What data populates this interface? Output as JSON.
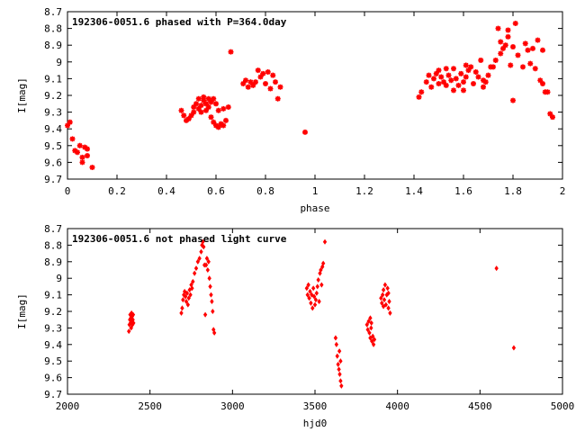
{
  "chart_data": [
    {
      "type": "scatter",
      "title": "192306-0051.6 phased with P=364.0day",
      "xlabel": "phase",
      "ylabel": "I[mag]",
      "xlim": [
        0,
        2
      ],
      "ylim": [
        9.7,
        8.7
      ],
      "y_inverted": true,
      "xticks": [
        "0",
        "0.2",
        "0.4",
        "0.6",
        "0.8",
        "1",
        "1.2",
        "1.4",
        "1.6",
        "1.8",
        "2"
      ],
      "yticks": [
        "8.7",
        "8.8",
        "8.9",
        "9",
        "9.1",
        "9.2",
        "9.3",
        "9.4",
        "9.5",
        "9.6",
        "9.7"
      ],
      "marker_color": "#ff0000",
      "marker": "star",
      "points": [
        [
          0.0,
          9.38
        ],
        [
          0.01,
          9.36
        ],
        [
          0.02,
          9.46
        ],
        [
          0.03,
          9.53
        ],
        [
          0.04,
          9.54
        ],
        [
          0.05,
          9.5
        ],
        [
          0.06,
          9.57
        ],
        [
          0.07,
          9.51
        ],
        [
          0.06,
          9.6
        ],
        [
          0.08,
          9.56
        ],
        [
          0.08,
          9.52
        ],
        [
          0.1,
          9.63
        ],
        [
          0.46,
          9.29
        ],
        [
          0.47,
          9.32
        ],
        [
          0.48,
          9.35
        ],
        [
          0.49,
          9.34
        ],
        [
          0.5,
          9.32
        ],
        [
          0.51,
          9.3
        ],
        [
          0.51,
          9.27
        ],
        [
          0.52,
          9.25
        ],
        [
          0.53,
          9.28
        ],
        [
          0.53,
          9.22
        ],
        [
          0.54,
          9.26
        ],
        [
          0.54,
          9.3
        ],
        [
          0.55,
          9.23
        ],
        [
          0.55,
          9.21
        ],
        [
          0.56,
          9.25
        ],
        [
          0.56,
          9.29
        ],
        [
          0.57,
          9.22
        ],
        [
          0.57,
          9.27
        ],
        [
          0.58,
          9.24
        ],
        [
          0.58,
          9.33
        ],
        [
          0.59,
          9.36
        ],
        [
          0.59,
          9.22
        ],
        [
          0.6,
          9.38
        ],
        [
          0.6,
          9.25
        ],
        [
          0.61,
          9.39
        ],
        [
          0.61,
          9.29
        ],
        [
          0.62,
          9.37
        ],
        [
          0.63,
          9.38
        ],
        [
          0.63,
          9.28
        ],
        [
          0.64,
          9.35
        ],
        [
          0.65,
          9.27
        ],
        [
          0.66,
          8.94
        ],
        [
          0.71,
          9.13
        ],
        [
          0.72,
          9.11
        ],
        [
          0.73,
          9.15
        ],
        [
          0.74,
          9.12
        ],
        [
          0.75,
          9.14
        ],
        [
          0.76,
          9.12
        ],
        [
          0.77,
          9.05
        ],
        [
          0.78,
          9.09
        ],
        [
          0.79,
          9.07
        ],
        [
          0.8,
          9.13
        ],
        [
          0.81,
          9.06
        ],
        [
          0.82,
          9.16
        ],
        [
          0.83,
          9.08
        ],
        [
          0.84,
          9.12
        ],
        [
          0.85,
          9.22
        ],
        [
          0.86,
          9.15
        ],
        [
          0.96,
          9.42
        ],
        [
          1.42,
          9.21
        ],
        [
          1.43,
          9.18
        ],
        [
          1.45,
          9.12
        ],
        [
          1.46,
          9.08
        ],
        [
          1.47,
          9.15
        ],
        [
          1.48,
          9.1
        ],
        [
          1.49,
          9.07
        ],
        [
          1.5,
          9.13
        ],
        [
          1.5,
          9.05
        ],
        [
          1.51,
          9.09
        ],
        [
          1.52,
          9.12
        ],
        [
          1.53,
          9.04
        ],
        [
          1.53,
          9.14
        ],
        [
          1.54,
          9.08
        ],
        [
          1.55,
          9.11
        ],
        [
          1.56,
          9.17
        ],
        [
          1.56,
          9.04
        ],
        [
          1.57,
          9.1
        ],
        [
          1.58,
          9.14
        ],
        [
          1.59,
          9.07
        ],
        [
          1.6,
          9.17
        ],
        [
          1.6,
          9.12
        ],
        [
          1.61,
          9.09
        ],
        [
          1.61,
          9.02
        ],
        [
          1.62,
          9.05
        ],
        [
          1.63,
          9.03
        ],
        [
          1.64,
          9.13
        ],
        [
          1.65,
          9.06
        ],
        [
          1.66,
          9.09
        ],
        [
          1.67,
          8.99
        ],
        [
          1.68,
          9.15
        ],
        [
          1.68,
          9.11
        ],
        [
          1.69,
          9.12
        ],
        [
          1.7,
          9.08
        ],
        [
          1.71,
          9.03
        ],
        [
          1.72,
          9.03
        ],
        [
          1.73,
          8.99
        ],
        [
          1.74,
          8.8
        ],
        [
          1.75,
          8.88
        ],
        [
          1.75,
          8.95
        ],
        [
          1.76,
          8.92
        ],
        [
          1.77,
          8.9
        ],
        [
          1.78,
          8.81
        ],
        [
          1.78,
          8.85
        ],
        [
          1.79,
          9.02
        ],
        [
          1.8,
          8.91
        ],
        [
          1.81,
          8.77
        ],
        [
          1.8,
          9.23
        ],
        [
          1.82,
          8.96
        ],
        [
          1.84,
          9.03
        ],
        [
          1.85,
          8.89
        ],
        [
          1.86,
          8.93
        ],
        [
          1.87,
          9.01
        ],
        [
          1.88,
          8.92
        ],
        [
          1.89,
          9.04
        ],
        [
          1.9,
          8.87
        ],
        [
          1.91,
          9.11
        ],
        [
          1.92,
          9.13
        ],
        [
          1.92,
          8.93
        ],
        [
          1.93,
          9.18
        ],
        [
          1.94,
          9.18
        ],
        [
          1.95,
          9.31
        ],
        [
          1.96,
          9.33
        ]
      ]
    },
    {
      "type": "scatter",
      "title": "192306-0051.6 not phased light curve",
      "xlabel": "hjd0",
      "ylabel": "I[mag]",
      "xlim": [
        2000,
        5000
      ],
      "ylim": [
        9.7,
        8.7
      ],
      "y_inverted": true,
      "xticks": [
        "2000",
        "2500",
        "3000",
        "3500",
        "4000",
        "4500",
        "5000"
      ],
      "yticks": [
        "8.7",
        "8.8",
        "8.9",
        "9",
        "9.1",
        "9.2",
        "9.3",
        "9.4",
        "9.5",
        "9.6",
        "9.7"
      ],
      "marker_color": "#ff0000",
      "marker": "diamond",
      "points": [
        [
          2372,
          9.32
        ],
        [
          2375,
          9.28
        ],
        [
          2378,
          9.25
        ],
        [
          2380,
          9.22
        ],
        [
          2382,
          9.27
        ],
        [
          2384,
          9.24
        ],
        [
          2386,
          9.3
        ],
        [
          2388,
          9.21
        ],
        [
          2390,
          9.26
        ],
        [
          2392,
          9.23
        ],
        [
          2394,
          9.28
        ],
        [
          2396,
          9.25
        ],
        [
          2398,
          9.22
        ],
        [
          2400,
          9.27
        ],
        [
          2690,
          9.21
        ],
        [
          2695,
          9.18
        ],
        [
          2700,
          9.13
        ],
        [
          2705,
          9.1
        ],
        [
          2710,
          9.08
        ],
        [
          2715,
          9.11
        ],
        [
          2720,
          9.14
        ],
        [
          2725,
          9.09
        ],
        [
          2730,
          9.16
        ],
        [
          2735,
          9.12
        ],
        [
          2740,
          9.07
        ],
        [
          2745,
          9.1
        ],
        [
          2750,
          9.04
        ],
        [
          2755,
          9.06
        ],
        [
          2760,
          9.02
        ],
        [
          2770,
          8.97
        ],
        [
          2780,
          8.94
        ],
        [
          2790,
          8.9
        ],
        [
          2800,
          8.88
        ],
        [
          2810,
          8.84
        ],
        [
          2815,
          8.8
        ],
        [
          2820,
          8.78
        ],
        [
          2825,
          8.81
        ],
        [
          2830,
          8.92
        ],
        [
          2835,
          9.22
        ],
        [
          2840,
          8.92
        ],
        [
          2845,
          8.88
        ],
        [
          2850,
          8.95
        ],
        [
          2855,
          8.9
        ],
        [
          2860,
          9.0
        ],
        [
          2865,
          9.05
        ],
        [
          2870,
          9.1
        ],
        [
          2875,
          9.14
        ],
        [
          2880,
          9.2
        ],
        [
          2885,
          9.31
        ],
        [
          2890,
          9.33
        ],
        [
          3450,
          9.06
        ],
        [
          3455,
          9.1
        ],
        [
          3460,
          9.04
        ],
        [
          3465,
          9.12
        ],
        [
          3470,
          9.08
        ],
        [
          3475,
          9.15
        ],
        [
          3480,
          9.1
        ],
        [
          3485,
          9.18
        ],
        [
          3490,
          9.06
        ],
        [
          3495,
          9.11
        ],
        [
          3500,
          9.16
        ],
        [
          3505,
          9.13
        ],
        [
          3510,
          9.09
        ],
        [
          3515,
          9.05
        ],
        [
          3520,
          9.01
        ],
        [
          3525,
          9.14
        ],
        [
          3530,
          8.97
        ],
        [
          3535,
          8.95
        ],
        [
          3540,
          9.04
        ],
        [
          3545,
          8.93
        ],
        [
          3550,
          8.91
        ],
        [
          3560,
          8.78
        ],
        [
          3625,
          9.36
        ],
        [
          3630,
          9.4
        ],
        [
          3635,
          9.47
        ],
        [
          3640,
          9.52
        ],
        [
          3645,
          9.55
        ],
        [
          3650,
          9.58
        ],
        [
          3655,
          9.62
        ],
        [
          3660,
          9.65
        ],
        [
          3655,
          9.5
        ],
        [
          3648,
          9.44
        ],
        [
          3815,
          9.28
        ],
        [
          3820,
          9.31
        ],
        [
          3825,
          9.26
        ],
        [
          3830,
          9.33
        ],
        [
          3835,
          9.36
        ],
        [
          3840,
          9.3
        ],
        [
          3845,
          9.38
        ],
        [
          3850,
          9.35
        ],
        [
          3855,
          9.4
        ],
        [
          3860,
          9.37
        ],
        [
          3835,
          9.24
        ],
        [
          3842,
          9.27
        ],
        [
          3900,
          9.12
        ],
        [
          3905,
          9.15
        ],
        [
          3910,
          9.1
        ],
        [
          3915,
          9.07
        ],
        [
          3920,
          9.13
        ],
        [
          3925,
          9.04
        ],
        [
          3930,
          9.16
        ],
        [
          3935,
          9.1
        ],
        [
          3940,
          9.06
        ],
        [
          3945,
          9.18
        ],
        [
          3950,
          9.14
        ],
        [
          3955,
          9.21
        ],
        [
          3915,
          9.17
        ],
        [
          3945,
          9.09
        ],
        [
          4600,
          8.94
        ],
        [
          4705,
          9.42
        ]
      ]
    }
  ]
}
